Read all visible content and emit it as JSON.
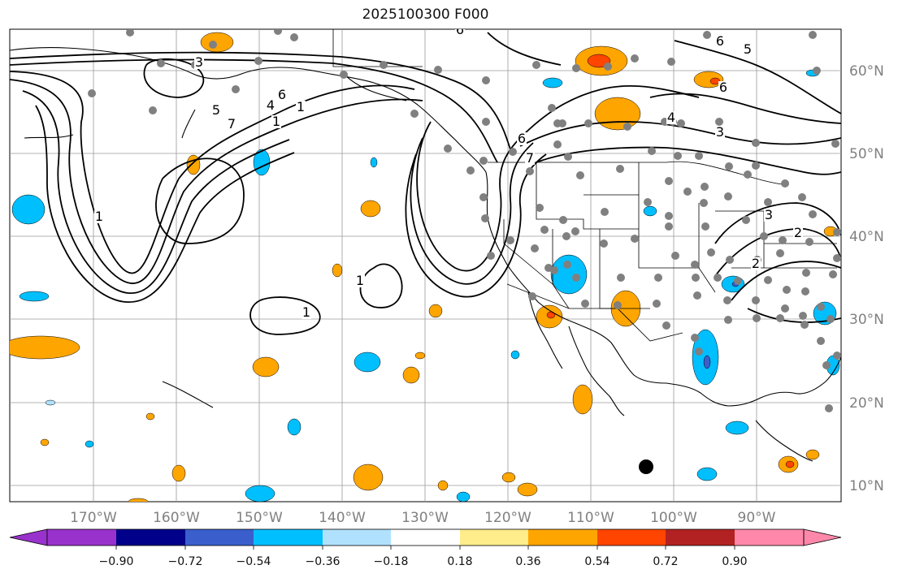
{
  "title": "2025100300 F000",
  "longitude_labels": [
    "170°W",
    "160°W",
    "150°W",
    "140°W",
    "130°W",
    "120°W",
    "110°W",
    "100°W",
    "90°W"
  ],
  "latitude_labels": [
    "60°N",
    "50°N",
    "40°N",
    "30°N",
    "20°N",
    "10°N"
  ],
  "colorbar": {
    "tick_labels": [
      "−0.90",
      "−0.72",
      "−0.54",
      "−0.36",
      "−0.18",
      "0.18",
      "0.36",
      "0.54",
      "0.72",
      "0.90"
    ],
    "colors": [
      "#9932CC",
      "#00008B",
      "#3A5FCD",
      "#00BFFF",
      "#B0E2FF",
      "#FFFFFF",
      "#FFEC8B",
      "#FFA500",
      "#FF4500",
      "#B22222",
      "#FF88AA"
    ]
  },
  "contour_labels": [
    "3",
    "5",
    "4",
    "6",
    "7",
    "1",
    "1",
    "6",
    "7",
    "1",
    "1",
    "6",
    "6",
    "5",
    "6",
    "3",
    "4",
    "3",
    "2",
    "2",
    "1"
  ],
  "fill_colors": {
    "orange": "#FFA500",
    "yellow": "#FFEC8B",
    "red": "#FF4500",
    "cyan": "#00BFFF",
    "light_blue": "#B0E2FF",
    "blue": "#3A5FCD"
  },
  "station_color": "#808080"
}
